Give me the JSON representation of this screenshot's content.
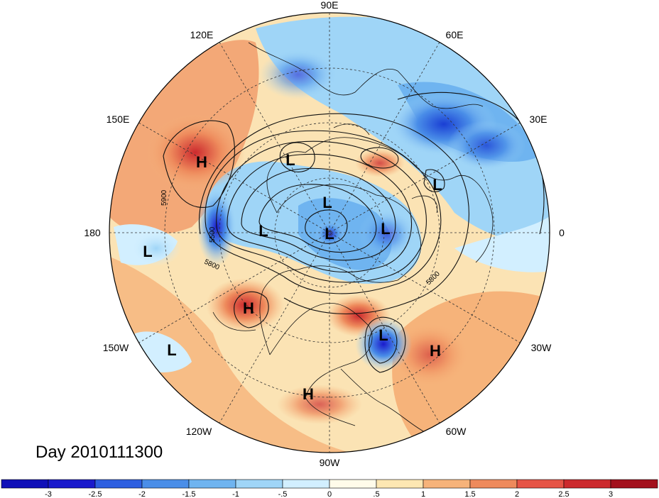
{
  "title": "Day 2010111300",
  "longitude_labels": {
    "top": "90E",
    "upper_left": "120E",
    "upper_right": "60E",
    "left_upper": "150E",
    "right_upper": "30E",
    "left": "180",
    "right": "0",
    "left_lower": "150W",
    "right_lower": "30W",
    "lower_left": "120W",
    "lower_right": "60W",
    "bottom": "90W"
  },
  "pressure_centers": [
    {
      "type": "H",
      "region": "north-pacific-east-asia"
    },
    {
      "type": "L",
      "region": "siberia"
    },
    {
      "type": "L",
      "region": "kara-sea"
    },
    {
      "type": "L",
      "region": "arctic-east-siberian-sea"
    },
    {
      "type": "L",
      "region": "north-pole"
    },
    {
      "type": "L",
      "region": "greenland-sea"
    },
    {
      "type": "L",
      "region": "scandinavia"
    },
    {
      "type": "L",
      "region": "central-pacific"
    },
    {
      "type": "H",
      "region": "gulf-of-alaska"
    },
    {
      "type": "L",
      "region": "east-pacific"
    },
    {
      "type": "L",
      "region": "western-atlantic"
    },
    {
      "type": "H",
      "region": "central-atlantic"
    },
    {
      "type": "H",
      "region": "mexico"
    }
  ],
  "contour_labels": [
    "5900",
    "5800",
    "5800",
    "5500"
  ],
  "colorbar": {
    "ticks": [
      "-3",
      "-2.5",
      "-2",
      "-1.5",
      "-1",
      "-.5",
      "0",
      ".5",
      "1",
      "1.5",
      "2",
      "2.5",
      "3"
    ],
    "colors": [
      "#1a1acc",
      "#2e5fe0",
      "#4a8ee8",
      "#6fb4f0",
      "#9fd5f7",
      "#d2efff",
      "#fffbea",
      "#fde7b2",
      "#f6b37a",
      "#ee8a5c",
      "#e65446",
      "#cc2a2e",
      "#a3111d"
    ]
  }
}
